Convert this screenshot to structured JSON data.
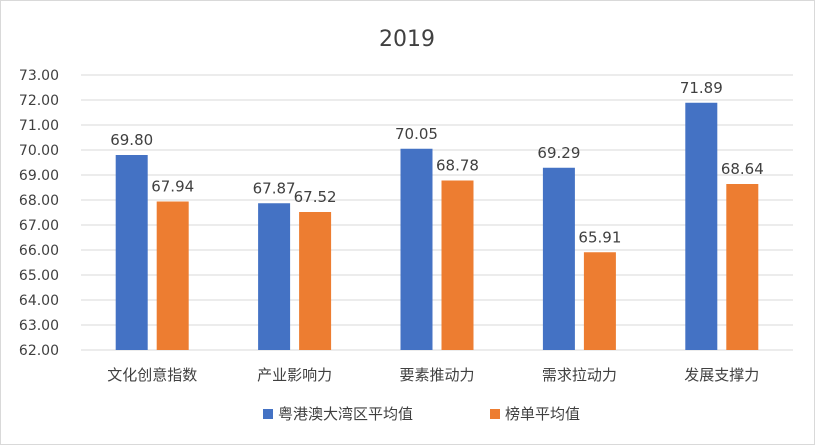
{
  "chart_data": {
    "type": "bar",
    "title": "2019",
    "categories": [
      "文化创意指数",
      "产业影响力",
      "要素推动力",
      "需求拉动力",
      "发展支撑力"
    ],
    "series": [
      {
        "name": "粤港澳大湾区平均值",
        "values": [
          69.8,
          67.87,
          70.05,
          69.29,
          71.89
        ],
        "labels": [
          "69.80",
          "67.87",
          "70.05",
          "69.29",
          "71.89"
        ]
      },
      {
        "name": "榜单平均值",
        "values": [
          67.94,
          67.52,
          68.78,
          65.91,
          68.64
        ],
        "labels": [
          "67.94",
          "67.52",
          "68.78",
          "65.91",
          "68.64"
        ]
      }
    ],
    "ylim": [
      62,
      73
    ],
    "yticks": [
      "62.00",
      "63.00",
      "64.00",
      "65.00",
      "66.00",
      "67.00",
      "68.00",
      "69.00",
      "70.00",
      "71.00",
      "72.00",
      "73.00"
    ],
    "grid": true,
    "legend_position": "bottom",
    "colors": {
      "series_1": "#4472c4",
      "series_2": "#ed7d31",
      "grid": "#d9d9d9",
      "text": "#404040"
    }
  }
}
